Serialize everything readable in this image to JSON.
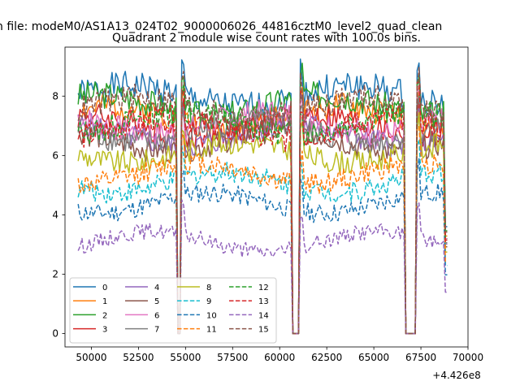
{
  "figure": {
    "suptitle": "n file: modeM0/AS1A13_024T02_9000006026_44816cztM0_level2_quad_clean",
    "title": "Quadrant 2 module wise count rates with 100.0s bins.",
    "offset_label": "+4.426e8"
  },
  "chart_data": {
    "type": "line",
    "title": "Quadrant 2 module wise count rates with 100.0s bins.",
    "xlabel": "",
    "ylabel": "",
    "x_offset": 442600000,
    "xlim": [
      48600,
      70000
    ],
    "ylim": [
      -0.45,
      9.65
    ],
    "x_ticks": [
      50000,
      52500,
      55000,
      57500,
      60000,
      62500,
      65000,
      67500,
      70000
    ],
    "x_tick_labels": [
      "50000",
      "52500",
      "55000",
      "57500",
      "60000",
      "62500",
      "65000",
      "67500",
      "70000"
    ],
    "y_ticks": [
      0,
      2,
      4,
      6,
      8
    ],
    "y_tick_labels": [
      "0",
      "2",
      "4",
      "6",
      "8"
    ],
    "grid": false,
    "legend_placement": "lower-left",
    "legend_columns": 4,
    "x_start": 49300,
    "x_end": 68900,
    "bin_seconds": 100,
    "gaps": [
      {
        "start": 54600,
        "end": 54700
      },
      {
        "start": 60700,
        "end": 61000
      },
      {
        "start": 66700,
        "end": 67200
      }
    ],
    "series": [
      {
        "name": "0",
        "color": "#1f77b4",
        "dash": "solid",
        "level": 8.0
      },
      {
        "name": "1",
        "color": "#ff7f0e",
        "dash": "solid",
        "level": 7.3
      },
      {
        "name": "2",
        "color": "#2ca02c",
        "dash": "solid",
        "level": 7.7
      },
      {
        "name": "3",
        "color": "#d62728",
        "dash": "solid",
        "level": 7.0
      },
      {
        "name": "4",
        "color": "#9467bd",
        "dash": "solid",
        "level": 6.7
      },
      {
        "name": "5",
        "color": "#8c564b",
        "dash": "solid",
        "level": 6.5
      },
      {
        "name": "6",
        "color": "#e377c2",
        "dash": "solid",
        "level": 7.1
      },
      {
        "name": "7",
        "color": "#7f7f7f",
        "dash": "solid",
        "level": 6.8
      },
      {
        "name": "8",
        "color": "#bcbd22",
        "dash": "solid",
        "level": 6.1
      },
      {
        "name": "9",
        "color": "#17becf",
        "dash": "dashed",
        "level": 5.1
      },
      {
        "name": "10",
        "color": "#1f77b4",
        "dash": "dashed",
        "level": 4.4
      },
      {
        "name": "11",
        "color": "#ff7f0e",
        "dash": "dashed",
        "level": 5.4
      },
      {
        "name": "12",
        "color": "#2ca02c",
        "dash": "dashed",
        "level": 7.1
      },
      {
        "name": "13",
        "color": "#d62728",
        "dash": "dashed",
        "level": 6.9
      },
      {
        "name": "14",
        "color": "#9467bd",
        "dash": "dashed",
        "level": 3.1
      },
      {
        "name": "15",
        "color": "#8c564b",
        "dash": "dashed",
        "level": 7.6
      }
    ]
  }
}
